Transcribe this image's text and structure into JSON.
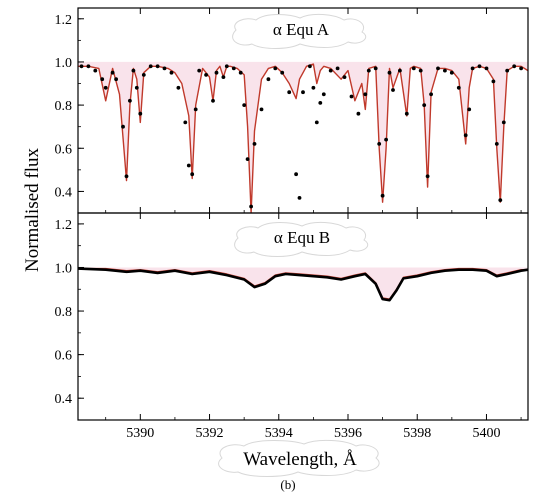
{
  "chart_data": [
    {
      "type": "line",
      "panel": "top",
      "title": "α Equ A",
      "xlim": [
        5388.2,
        5401.2
      ],
      "ylim": [
        0.3,
        1.25
      ],
      "yticks": [
        0.4,
        0.6,
        0.8,
        1.0,
        1.2
      ],
      "ytick_labels": [
        "0.4",
        "0.6",
        "0.8",
        "1.0",
        "1.2"
      ],
      "series": [
        {
          "color": "#c0392b",
          "x": [
            5388.2,
            5388.5,
            5388.8,
            5389.0,
            5389.2,
            5389.4,
            5389.5,
            5389.6,
            5389.7,
            5389.8,
            5389.9,
            5390.0,
            5390.1,
            5390.3,
            5390.5,
            5390.8,
            5391.0,
            5391.2,
            5391.4,
            5391.5,
            5391.6,
            5391.8,
            5392.0,
            5392.1,
            5392.2,
            5392.3,
            5392.4,
            5392.5,
            5392.6,
            5392.8,
            5393.0,
            5393.1,
            5393.2,
            5393.3,
            5393.5,
            5393.7,
            5393.9,
            5394.1,
            5394.3,
            5394.5,
            5394.6,
            5394.8,
            5395.0,
            5395.1,
            5395.2,
            5395.3,
            5395.5,
            5395.8,
            5396.0,
            5396.2,
            5396.4,
            5396.5,
            5396.6,
            5396.8,
            5396.9,
            5397.0,
            5397.1,
            5397.2,
            5397.3,
            5397.5,
            5397.7,
            5397.8,
            5397.9,
            5398.1,
            5398.2,
            5398.3,
            5398.4,
            5398.6,
            5398.8,
            5399.0,
            5399.2,
            5399.4,
            5399.5,
            5399.6,
            5399.8,
            5400.0,
            5400.2,
            5400.3,
            5400.4,
            5400.5,
            5400.6,
            5400.8,
            5401.0,
            5401.2
          ],
          "y": [
            0.98,
            0.98,
            0.97,
            0.82,
            0.97,
            0.85,
            0.65,
            0.45,
            0.8,
            0.97,
            0.92,
            0.72,
            0.95,
            0.98,
            0.98,
            0.97,
            0.95,
            0.9,
            0.75,
            0.46,
            0.8,
            0.97,
            0.93,
            0.82,
            0.96,
            0.98,
            0.93,
            0.98,
            0.98,
            0.97,
            0.94,
            0.7,
            0.3,
            0.68,
            0.92,
            0.97,
            0.98,
            0.95,
            0.9,
            0.83,
            0.92,
            0.98,
            0.99,
            0.9,
            0.96,
            0.98,
            0.97,
            0.92,
            0.96,
            0.82,
            0.9,
            0.78,
            0.97,
            0.98,
            0.6,
            0.35,
            0.6,
            0.97,
            0.88,
            0.97,
            0.75,
            0.97,
            0.98,
            0.97,
            0.8,
            0.42,
            0.86,
            0.97,
            0.97,
            0.96,
            0.92,
            0.62,
            0.88,
            0.97,
            0.98,
            0.97,
            0.92,
            0.6,
            0.35,
            0.7,
            0.96,
            0.98,
            0.98,
            0.96
          ]
        },
        {
          "color": "#000000",
          "marker": "dots",
          "x": [
            5388.3,
            5388.5,
            5388.7,
            5388.9,
            5389.0,
            5389.2,
            5389.3,
            5389.5,
            5389.6,
            5389.7,
            5389.8,
            5389.9,
            5390.0,
            5390.1,
            5390.3,
            5390.5,
            5390.7,
            5390.9,
            5391.1,
            5391.3,
            5391.4,
            5391.5,
            5391.6,
            5391.7,
            5391.9,
            5392.1,
            5392.2,
            5392.4,
            5392.5,
            5392.7,
            5392.9,
            5393.0,
            5393.1,
            5393.2,
            5393.3,
            5393.5,
            5393.7,
            5393.9,
            5394.1,
            5394.3,
            5394.5,
            5394.6,
            5394.7,
            5394.9,
            5395.0,
            5395.1,
            5395.2,
            5395.3,
            5395.5,
            5395.7,
            5395.9,
            5396.1,
            5396.3,
            5396.5,
            5396.6,
            5396.8,
            5396.9,
            5397.0,
            5397.1,
            5397.2,
            5397.3,
            5397.5,
            5397.7,
            5397.9,
            5398.1,
            5398.2,
            5398.3,
            5398.4,
            5398.6,
            5398.8,
            5399.0,
            5399.2,
            5399.4,
            5399.5,
            5399.6,
            5399.8,
            5400.0,
            5400.2,
            5400.3,
            5400.4,
            5400.5,
            5400.6,
            5400.8,
            5401.0
          ],
          "y": [
            0.98,
            0.98,
            0.96,
            0.92,
            0.88,
            0.95,
            0.92,
            0.7,
            0.47,
            0.82,
            0.96,
            0.88,
            0.76,
            0.94,
            0.98,
            0.98,
            0.97,
            0.95,
            0.88,
            0.72,
            0.52,
            0.48,
            0.78,
            0.96,
            0.94,
            0.82,
            0.95,
            0.93,
            0.98,
            0.97,
            0.95,
            0.8,
            0.55,
            0.33,
            0.62,
            0.78,
            0.92,
            0.97,
            0.95,
            0.86,
            0.48,
            0.37,
            0.86,
            0.98,
            0.88,
            0.72,
            0.81,
            0.85,
            0.96,
            0.97,
            0.93,
            0.84,
            0.76,
            0.85,
            0.96,
            0.97,
            0.62,
            0.38,
            0.64,
            0.95,
            0.87,
            0.96,
            0.76,
            0.97,
            0.96,
            0.8,
            0.47,
            0.85,
            0.97,
            0.96,
            0.95,
            0.88,
            0.66,
            0.78,
            0.97,
            0.98,
            0.97,
            0.91,
            0.62,
            0.36,
            0.72,
            0.96,
            0.98,
            0.97
          ]
        }
      ]
    },
    {
      "type": "line",
      "panel": "bottom",
      "title": "α Equ B",
      "xlim": [
        5388.2,
        5401.2
      ],
      "ylim": [
        0.3,
        1.25
      ],
      "yticks": [
        0.4,
        0.6,
        0.8,
        1.0,
        1.2
      ],
      "ytick_labels": [
        "0.4",
        "0.6",
        "0.8",
        "1.0",
        "1.2"
      ],
      "xticks": [
        5390,
        5392,
        5394,
        5396,
        5398,
        5400
      ],
      "xtick_labels": [
        "5390",
        "5392",
        "5394",
        "5396",
        "5398",
        "5400"
      ],
      "xlabel": "Wavelength, Å",
      "ylabel": "Normalised flux",
      "caption": "(b)",
      "series": [
        {
          "color": "#c0392b",
          "x": [
            5388.2,
            5389.0,
            5389.6,
            5390.0,
            5390.5,
            5391.0,
            5391.5,
            5392.0,
            5392.5,
            5393.0,
            5393.3,
            5393.6,
            5393.9,
            5394.2,
            5394.6,
            5395.0,
            5395.4,
            5395.8,
            5396.2,
            5396.5,
            5396.8,
            5397.0,
            5397.2,
            5397.4,
            5397.6,
            5398.0,
            5398.4,
            5398.8,
            5399.2,
            5399.6,
            5400.0,
            5400.3,
            5400.6,
            5401.0,
            5401.2
          ],
          "y": [
            0.995,
            0.995,
            0.985,
            0.99,
            0.98,
            0.99,
            0.975,
            0.985,
            0.97,
            0.95,
            0.915,
            0.93,
            0.965,
            0.975,
            0.97,
            0.965,
            0.96,
            0.95,
            0.965,
            0.975,
            0.93,
            0.86,
            0.855,
            0.9,
            0.955,
            0.965,
            0.98,
            0.99,
            0.995,
            0.995,
            0.99,
            0.965,
            0.975,
            0.99,
            0.99
          ]
        },
        {
          "color": "#000000",
          "x": [
            5388.2,
            5389.0,
            5389.6,
            5390.0,
            5390.5,
            5391.0,
            5391.5,
            5392.0,
            5392.5,
            5393.0,
            5393.3,
            5393.6,
            5393.9,
            5394.2,
            5394.6,
            5395.0,
            5395.4,
            5395.8,
            5396.2,
            5396.5,
            5396.8,
            5397.0,
            5397.2,
            5397.4,
            5397.6,
            5398.0,
            5398.4,
            5398.8,
            5399.2,
            5399.6,
            5400.0,
            5400.3,
            5400.6,
            5401.0,
            5401.2
          ],
          "y": [
            0.995,
            0.99,
            0.98,
            0.985,
            0.975,
            0.985,
            0.97,
            0.98,
            0.965,
            0.945,
            0.91,
            0.925,
            0.96,
            0.97,
            0.965,
            0.96,
            0.955,
            0.945,
            0.96,
            0.97,
            0.925,
            0.855,
            0.85,
            0.895,
            0.95,
            0.96,
            0.975,
            0.985,
            0.99,
            0.99,
            0.985,
            0.96,
            0.97,
            0.985,
            0.99
          ]
        }
      ]
    }
  ]
}
